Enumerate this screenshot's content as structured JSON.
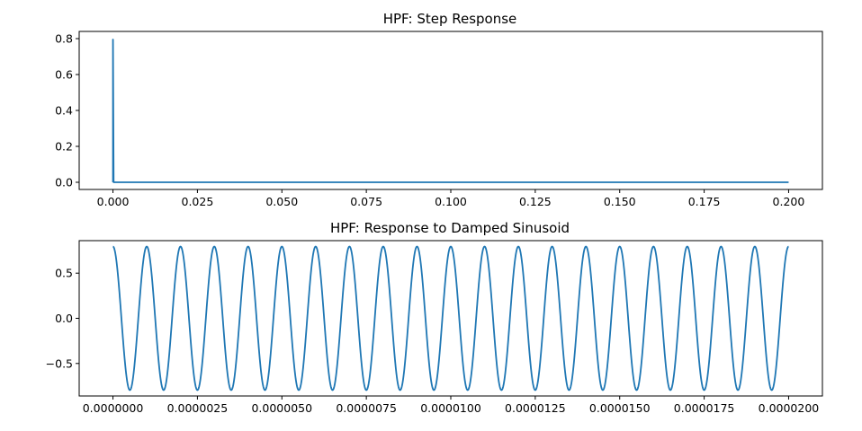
{
  "colors": {
    "line": "#1f77b4",
    "axes": "#000000",
    "background": "#ffffff"
  },
  "chart_data": [
    {
      "type": "line",
      "title": "HPF: Step Response",
      "xlabel": "",
      "ylabel": "",
      "xlim": [
        -0.01,
        0.21
      ],
      "ylim": [
        -0.04,
        0.84
      ],
      "xticks": [
        0.0,
        0.025,
        0.05,
        0.075,
        0.1,
        0.125,
        0.15,
        0.175,
        0.2
      ],
      "xtick_labels": [
        "0.000",
        "0.025",
        "0.050",
        "0.075",
        "0.100",
        "0.125",
        "0.150",
        "0.175",
        "0.200"
      ],
      "yticks": [
        0.0,
        0.2,
        0.4,
        0.6,
        0.8
      ],
      "ytick_labels": [
        "0.0",
        "0.2",
        "0.4",
        "0.6",
        "0.8"
      ],
      "grid": false,
      "series": [
        {
          "x": [
            0.0,
            0.0,
            0.0002,
            0.2
          ],
          "y": [
            0.0,
            0.795,
            0.0,
            0.0
          ]
        }
      ]
    },
    {
      "type": "line",
      "title": "HPF: Response to Damped Sinusoid",
      "xlabel": "",
      "ylabel": "",
      "xlim": [
        -1e-06,
        2.1e-05
      ],
      "ylim": [
        -0.86,
        0.86
      ],
      "xticks": [
        0.0,
        2.5e-06,
        5e-06,
        7.5e-06,
        1e-05,
        1.25e-05,
        1.5e-05,
        1.75e-05,
        2e-05
      ],
      "xtick_labels": [
        "0.0000000",
        "0.0000025",
        "0.0000050",
        "0.0000075",
        "0.0000100",
        "0.0000125",
        "0.0000150",
        "0.0000175",
        "0.0000200"
      ],
      "yticks": [
        -0.5,
        0.0,
        0.5
      ],
      "ytick_labels": [
        "−0.5",
        "0.0",
        "0.5"
      ],
      "grid": false,
      "series": [
        {
          "function": "cosine",
          "amplitude": 0.795,
          "period": 1e-06,
          "x_start": 0.0,
          "x_end": 2e-05
        }
      ]
    }
  ]
}
